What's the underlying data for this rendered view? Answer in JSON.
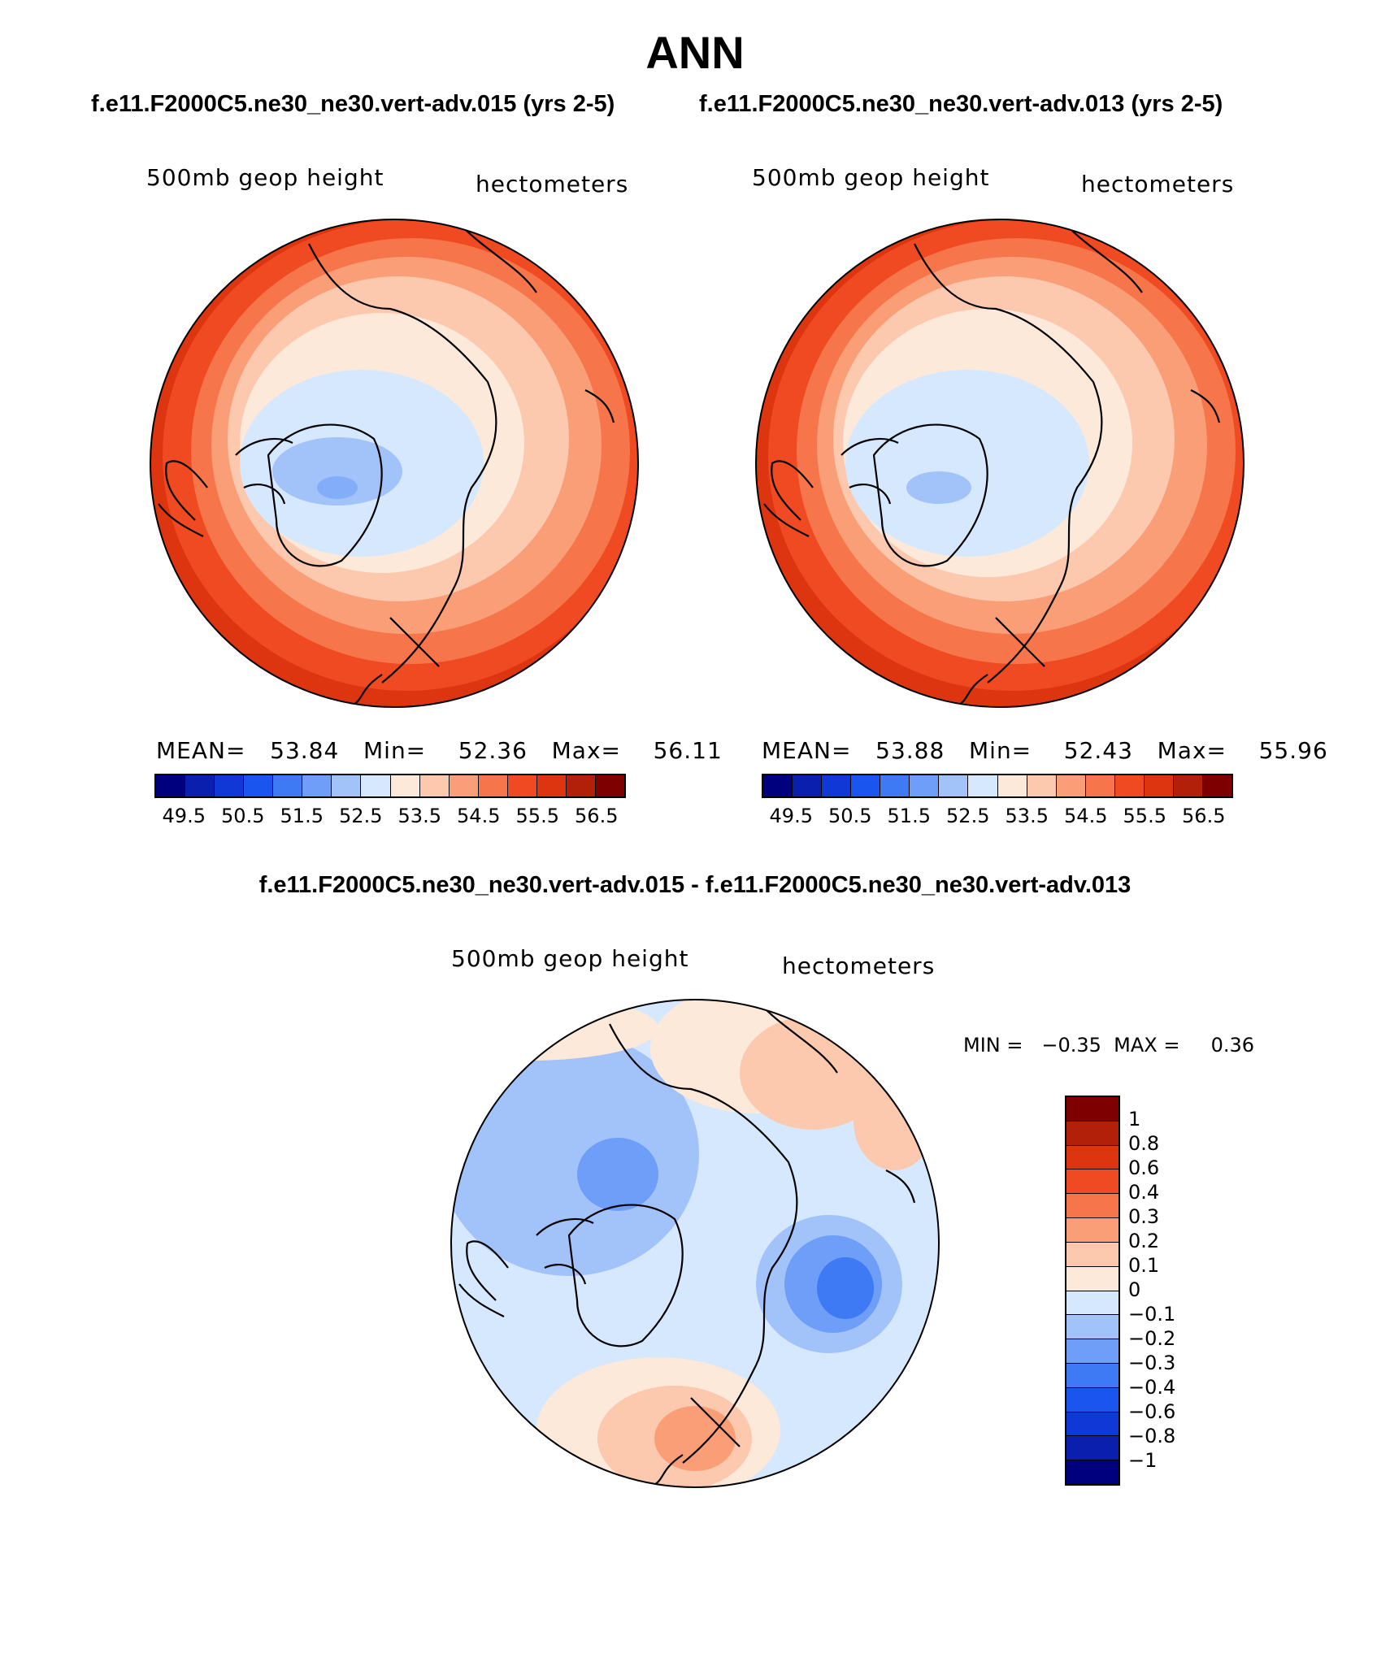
{
  "title": "ANN",
  "case_a": "f.e11.F2000C5.ne30_ne30.vert-adv.015",
  "case_b": "f.e11.F2000C5.ne30_ne30.vert-adv.013",
  "panels": {
    "left": {
      "header": "f.e11.F2000C5.ne30_ne30.vert-adv.015 (yrs 2-5)",
      "variable": "500mb  geop  height",
      "units": "hectometers",
      "stats": {
        "mean_label": "MEAN=",
        "mean": "53.84",
        "min_label": "Min=",
        "min": "52.36",
        "max_label": "Max=",
        "max": "56.11"
      }
    },
    "right": {
      "header": "f.e11.F2000C5.ne30_ne30.vert-adv.013 (yrs 2-5)",
      "variable": "500mb  geop  height",
      "units": "hectometers",
      "stats": {
        "mean_label": "MEAN=",
        "mean": "53.88",
        "min_label": "Min=",
        "min": "52.43",
        "max_label": "Max=",
        "max": "55.96"
      }
    },
    "diff": {
      "header": "f.e11.F2000C5.ne30_ne30.vert-adv.015 - f.e11.F2000C5.ne30_ne30.vert-adv.013",
      "variable": "500mb  geop  height",
      "units": "hectometers",
      "minmax_text": "MIN =   −0.35  MAX =     0.36"
    }
  },
  "abs_colorbar": {
    "labels": [
      "49.5",
      "50.5",
      "51.5",
      "52.5",
      "53.5",
      "54.5",
      "55.5",
      "56.5"
    ],
    "colors": [
      "#00007f",
      "#0a1fae",
      "#0f38d6",
      "#1a55f0",
      "#3f7af5",
      "#6e9ef8",
      "#a2c2fa",
      "#d6e8fd",
      "#fde9da",
      "#fcc8ae",
      "#fa9e78",
      "#f7754a",
      "#f04a22",
      "#dc3510",
      "#b3200a",
      "#7f0000"
    ]
  },
  "diff_colorbar": {
    "labels": [
      "1",
      "0.8",
      "0.6",
      "0.4",
      "0.3",
      "0.2",
      "0.1",
      "0",
      "−0.1",
      "−0.2",
      "−0.3",
      "−0.4",
      "−0.6",
      "−0.8",
      "−1"
    ],
    "colors": [
      "#7f0000",
      "#b3200a",
      "#dc3510",
      "#f04a22",
      "#f7754a",
      "#fa9e78",
      "#fcc8ae",
      "#fde9da",
      "#d6e8fd",
      "#a2c2fa",
      "#6e9ef8",
      "#3f7af5",
      "#1a55f0",
      "#0f38d6",
      "#0a1fae",
      "#00007f"
    ]
  }
}
